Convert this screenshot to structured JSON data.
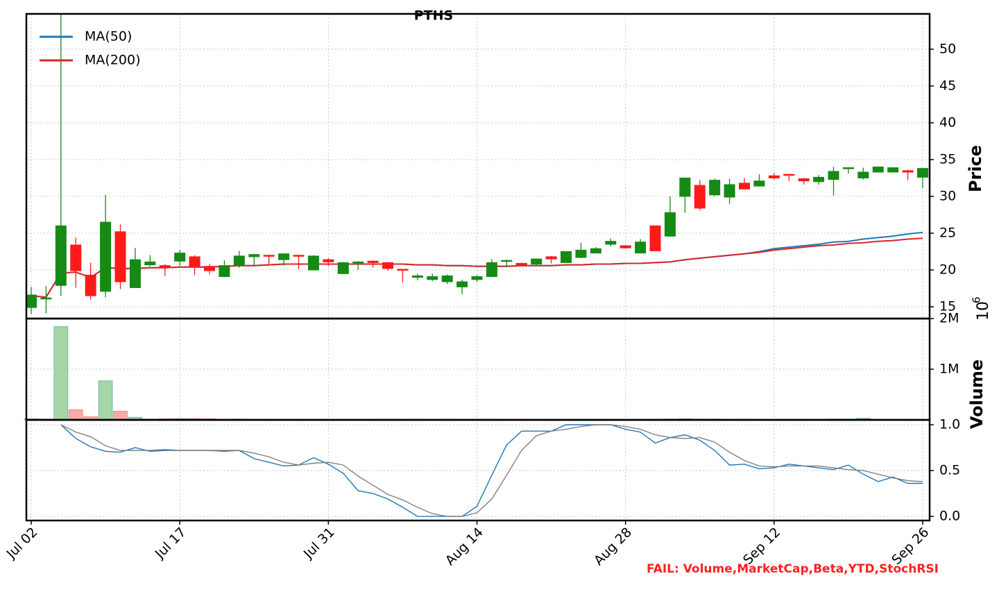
{
  "chart_data": [
    {
      "type": "candlestick",
      "title": "PTHS",
      "ylabel": "Price",
      "open": [
        14.9,
        16.1,
        17.9,
        23.4,
        19.3,
        17.1,
        25.2,
        17.6,
        20.7,
        20.6,
        21.2,
        21.8,
        20.5,
        19.1,
        20.6,
        21.8,
        22.0,
        21.4,
        22.0,
        20.0,
        21.4,
        19.5,
        21.0,
        21.2,
        21.0,
        20.1,
        19.0,
        18.7,
        18.4,
        17.7,
        18.7,
        19.1,
        21.2,
        20.9,
        20.8,
        21.8,
        21.0,
        21.7,
        22.3,
        23.5,
        23.3,
        22.3,
        26.0,
        24.6,
        30.0,
        31.5,
        30.2,
        29.9,
        31.8,
        31.4,
        32.8,
        33.0,
        32.4,
        32.0,
        32.3,
        33.8,
        32.5,
        33.3,
        33.3,
        33.5,
        32.6
      ],
      "high": [
        17.7,
        17.8,
        54.8,
        24.4,
        21.0,
        30.2,
        26.2,
        23.0,
        22.0,
        20.8,
        22.7,
        22.0,
        20.8,
        21.3,
        22.6,
        22.2,
        22.1,
        22.2,
        22.1,
        22.0,
        21.6,
        21.1,
        21.2,
        21.3,
        21.1,
        20.1,
        19.5,
        19.5,
        19.4,
        18.7,
        19.3,
        21.5,
        21.4,
        21.0,
        21.5,
        21.9,
        22.5,
        23.7,
        23.1,
        24.3,
        23.4,
        24.2,
        26.0,
        30.0,
        32.5,
        32.2,
        32.4,
        32.4,
        32.5,
        33.0,
        33.2,
        33.0,
        32.5,
        32.9,
        34.0,
        33.9,
        33.9,
        34.0,
        33.9,
        33.6,
        33.9
      ],
      "low": [
        14.0,
        14.1,
        16.5,
        17.6,
        16.0,
        16.3,
        17.4,
        17.6,
        20.5,
        19.2,
        20.6,
        19.3,
        19.4,
        19.1,
        20.3,
        20.6,
        20.8,
        20.6,
        20.1,
        20.0,
        20.5,
        19.5,
        20.0,
        20.3,
        19.9,
        18.3,
        18.6,
        18.5,
        18.1,
        16.7,
        18.4,
        19.1,
        20.4,
        20.5,
        20.6,
        20.9,
        21.0,
        21.6,
        22.3,
        23.2,
        22.9,
        22.3,
        22.6,
        24.5,
        27.8,
        28.1,
        30.0,
        29.0,
        31.0,
        31.4,
        32.3,
        32.1,
        31.6,
        31.6,
        30.1,
        33.1,
        32.3,
        33.3,
        33.3,
        32.2,
        31.1
      ],
      "close": [
        16.6,
        16.2,
        26.0,
        19.9,
        16.5,
        26.5,
        18.4,
        21.4,
        21.1,
        20.5,
        22.3,
        20.5,
        19.9,
        20.6,
        21.9,
        22.1,
        21.9,
        22.2,
        21.9,
        21.9,
        21.1,
        21.0,
        21.1,
        21.0,
        20.2,
        20.0,
        19.2,
        19.1,
        19.2,
        18.4,
        19.1,
        21.0,
        21.3,
        20.7,
        21.5,
        21.5,
        22.5,
        22.7,
        22.9,
        23.9,
        23.0,
        23.8,
        22.6,
        27.8,
        32.5,
        28.4,
        32.2,
        31.6,
        31.0,
        32.1,
        32.5,
        32.9,
        32.1,
        32.6,
        33.4,
        33.9,
        33.3,
        34.0,
        33.9,
        33.3,
        33.8
      ],
      "up_color": "#158a15",
      "down_color": "#ff1a1a",
      "series": [
        {
          "name": "MA(50)",
          "color": "#1f77b4",
          "values": [
            16.5,
            16.3,
            19.6,
            19.7,
            19.0,
            20.3,
            20.2,
            20.2,
            20.3,
            20.3,
            20.4,
            20.4,
            20.4,
            20.5,
            20.6,
            20.6,
            20.7,
            20.8,
            20.8,
            20.8,
            20.8,
            20.8,
            20.8,
            20.8,
            20.8,
            20.8,
            20.7,
            20.7,
            20.6,
            20.6,
            20.5,
            20.5,
            20.5,
            20.6,
            20.6,
            20.6,
            20.7,
            20.7,
            20.8,
            20.8,
            20.9,
            20.9,
            21.0,
            21.1,
            21.4,
            21.6,
            21.8,
            22.0,
            22.2,
            22.5,
            22.9,
            23.1,
            23.3,
            23.5,
            23.8,
            23.9,
            24.2,
            24.4,
            24.6,
            24.9,
            25.1
          ]
        },
        {
          "name": "MA(200)",
          "color": "#d62728",
          "values": [
            16.5,
            16.3,
            19.6,
            19.7,
            19.0,
            20.3,
            20.2,
            20.2,
            20.3,
            20.3,
            20.4,
            20.4,
            20.4,
            20.5,
            20.6,
            20.6,
            20.7,
            20.8,
            20.8,
            20.8,
            20.8,
            20.8,
            20.8,
            20.8,
            20.8,
            20.8,
            20.7,
            20.7,
            20.6,
            20.6,
            20.5,
            20.5,
            20.5,
            20.6,
            20.6,
            20.6,
            20.7,
            20.7,
            20.8,
            20.8,
            20.9,
            20.9,
            21.0,
            21.1,
            21.4,
            21.6,
            21.8,
            22.0,
            22.2,
            22.4,
            22.7,
            22.9,
            23.1,
            23.3,
            23.4,
            23.6,
            23.7,
            23.9,
            24.0,
            24.2,
            24.3
          ]
        }
      ],
      "legend": "upper left",
      "grid": true,
      "ylim": [
        13.4,
        54.8
      ],
      "yticks": [
        15,
        20,
        25,
        30,
        35,
        40,
        45,
        50
      ]
    },
    {
      "type": "bar",
      "ylabel": "Volume",
      "offset_label": {
        "base": "10",
        "exponent": "6"
      },
      "values": [
        20000,
        15000,
        1840000,
        200000,
        60000,
        770000,
        170000,
        50000,
        15000,
        20000,
        25000,
        25000,
        20000,
        10000,
        15000,
        8000,
        8000,
        8000,
        8000,
        8000,
        8000,
        8000,
        8000,
        8000,
        12000,
        8000,
        12000,
        8000,
        12000,
        8000,
        10000,
        12000,
        8000,
        8000,
        8000,
        8000,
        8000,
        8000,
        8000,
        8000,
        8000,
        8000,
        8000,
        15000,
        20000,
        15000,
        15000,
        8000,
        12000,
        8000,
        8000,
        8000,
        8000,
        8000,
        15000,
        15000,
        30000,
        8000,
        8000,
        8000,
        8000
      ],
      "up_color": "#a5d6a7",
      "down_color": "#ffaaaa",
      "grid": true,
      "ylim": [
        0,
        2000000
      ],
      "yticks": [
        {
          "value": 1000000,
          "label": "1M"
        },
        {
          "value": 2000000,
          "label": "2M"
        }
      ]
    },
    {
      "type": "line",
      "categories": [
        "Jul 02",
        null,
        null,
        null,
        null,
        null,
        null,
        null,
        null,
        null,
        "Jul 17",
        null,
        null,
        null,
        null,
        null,
        null,
        null,
        null,
        null,
        "Jul 31",
        null,
        null,
        null,
        null,
        null,
        null,
        null,
        null,
        null,
        "Aug 14",
        null,
        null,
        null,
        null,
        null,
        null,
        null,
        null,
        null,
        "Aug 28",
        null,
        null,
        null,
        null,
        null,
        null,
        null,
        null,
        null,
        "Sep 12",
        null,
        null,
        null,
        null,
        null,
        null,
        null,
        null,
        null,
        "Sep 26"
      ],
      "series": [
        {
          "color": "#1f77b4",
          "values": [
            null,
            null,
            1.0,
            0.85,
            0.76,
            0.71,
            0.7,
            0.75,
            0.71,
            0.72,
            0.72,
            0.72,
            0.72,
            0.71,
            0.72,
            0.63,
            0.59,
            0.55,
            0.56,
            0.64,
            0.57,
            0.47,
            0.28,
            0.25,
            0.19,
            0.1,
            0.0,
            0.0,
            0.0,
            0.0,
            0.11,
            0.45,
            0.78,
            0.93,
            0.93,
            0.93,
            1.0,
            1.0,
            1.0,
            1.0,
            0.95,
            0.92,
            0.8,
            0.86,
            0.89,
            0.83,
            0.72,
            0.56,
            0.57,
            0.52,
            0.53,
            0.57,
            0.55,
            0.53,
            0.51,
            0.56,
            0.46,
            0.38,
            0.43,
            0.36,
            0.36
          ]
        },
        {
          "color": "#808080",
          "values": [
            null,
            null,
            1.0,
            0.92,
            0.87,
            0.77,
            0.72,
            0.72,
            0.72,
            0.73,
            0.72,
            0.72,
            0.72,
            0.72,
            0.72,
            0.69,
            0.65,
            0.59,
            0.56,
            0.58,
            0.59,
            0.56,
            0.44,
            0.34,
            0.24,
            0.18,
            0.1,
            0.03,
            0.0,
            0.0,
            0.04,
            0.19,
            0.45,
            0.72,
            0.88,
            0.93,
            0.95,
            0.98,
            1.0,
            1.0,
            0.98,
            0.95,
            0.89,
            0.86,
            0.85,
            0.86,
            0.81,
            0.7,
            0.61,
            0.55,
            0.54,
            0.55,
            0.55,
            0.55,
            0.53,
            0.51,
            0.5,
            0.46,
            0.42,
            0.39,
            0.38
          ]
        }
      ],
      "grid": true,
      "ylim": [
        -0.045,
        1.053
      ],
      "yticks": [
        {
          "value": 0,
          "label": "0.0"
        },
        {
          "value": 0.5,
          "label": "0.5"
        },
        {
          "value": 1,
          "label": "1.0"
        }
      ]
    }
  ],
  "footer": "FAIL: Volume,MarketCap,Beta,YTD,StochRSI"
}
